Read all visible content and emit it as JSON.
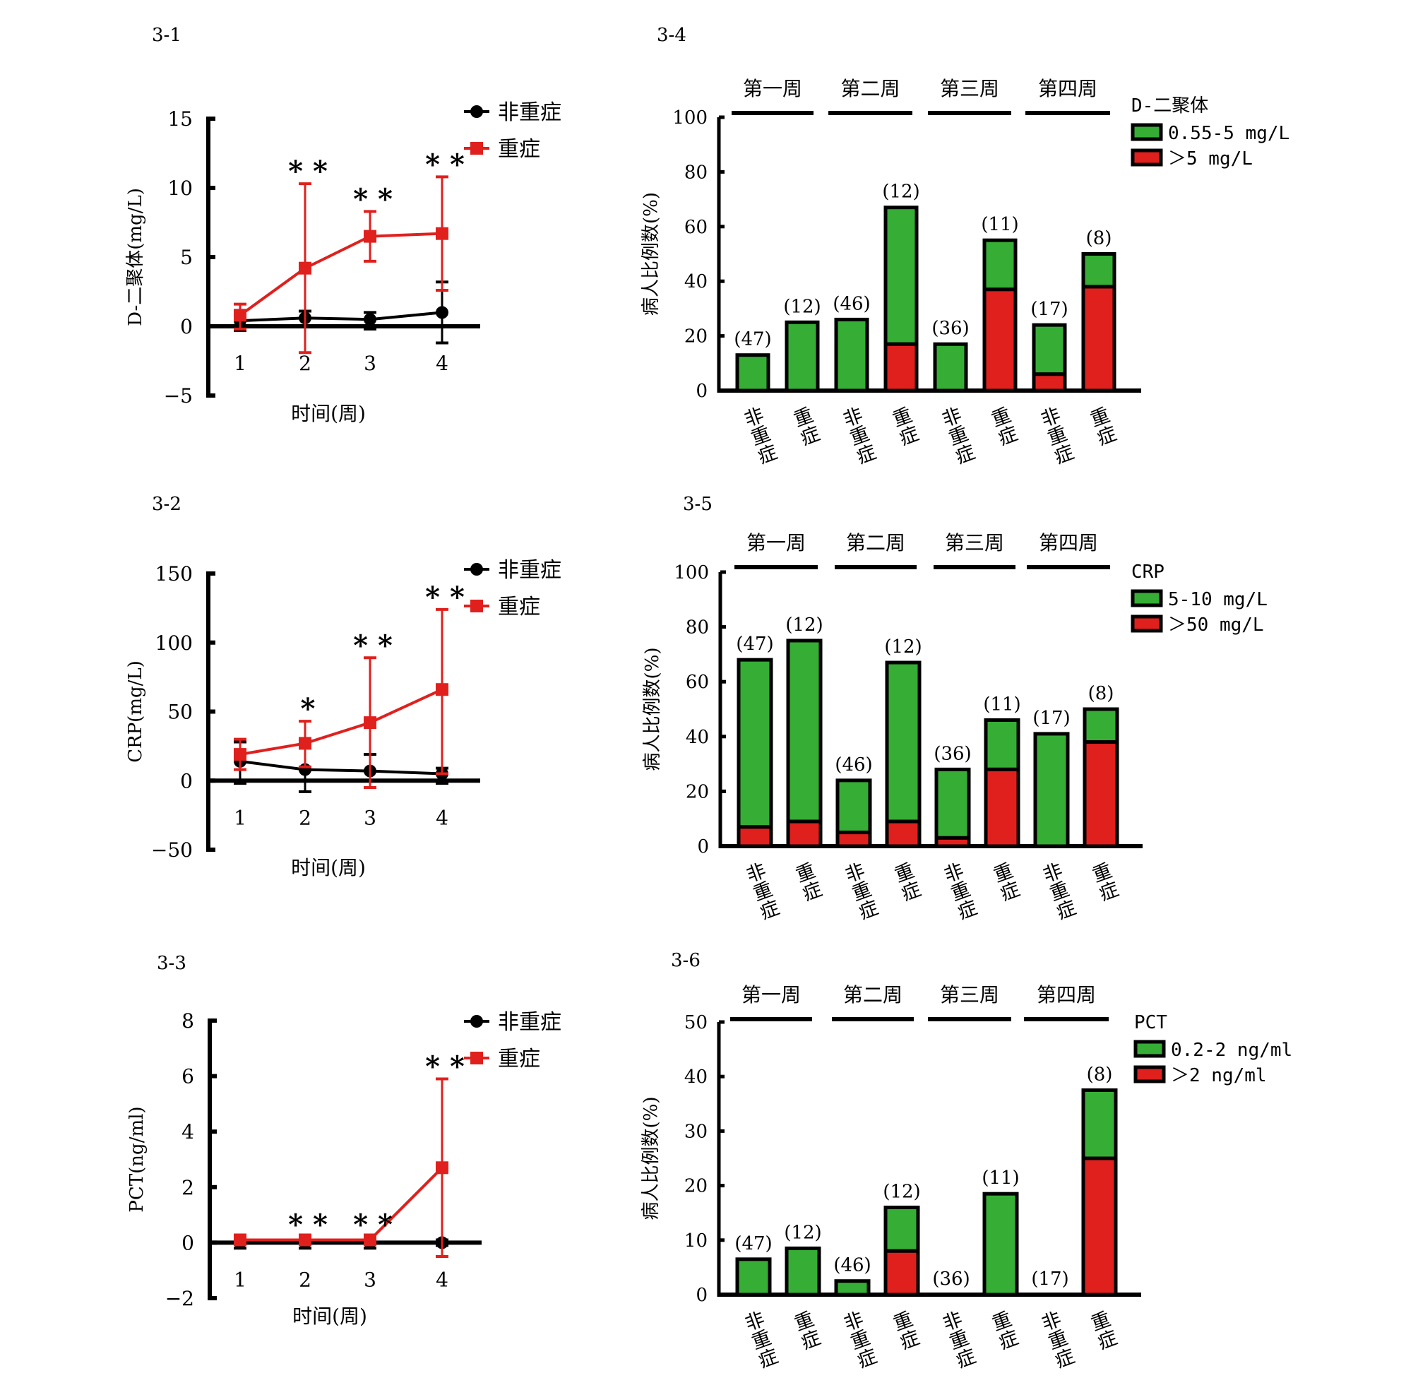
{
  "chart_data": [
    {
      "id": "3-1",
      "type": "line",
      "panel_label": "3-1",
      "ylabel": "D-二聚体(mg/L)",
      "xlabel": "时间(周)",
      "x": [
        1,
        2,
        3,
        4
      ],
      "x_ticks": [
        "1",
        "2",
        "3",
        "4"
      ],
      "ylim": [
        -5,
        15
      ],
      "y_ticks": [
        15,
        10,
        5,
        0,
        -5
      ],
      "y_tick_labels": [
        "15",
        "10",
        "5",
        "0",
        "−5"
      ],
      "legend": "top-right",
      "significance": [
        "",
        "**",
        "**",
        "**"
      ],
      "series": [
        {
          "name": "非重症",
          "color": "#000000",
          "marker": "circle",
          "values": [
            0.4,
            0.6,
            0.5,
            1.0
          ],
          "err_upper": [
            0.6,
            1.1,
            1.0,
            3.2
          ],
          "err_lower": [
            -0.3,
            0.0,
            -0.2,
            -1.2
          ]
        },
        {
          "name": "重症",
          "color": "#e0201d",
          "marker": "square",
          "values": [
            0.8,
            4.2,
            6.5,
            6.7
          ],
          "err_upper": [
            1.6,
            10.3,
            8.3,
            10.8
          ],
          "err_lower": [
            -0.2,
            -1.9,
            4.7,
            2.6
          ]
        }
      ]
    },
    {
      "id": "3-2",
      "type": "line",
      "panel_label": "3-2",
      "ylabel": "CRP(mg/L)",
      "xlabel": "时间(周)",
      "x": [
        1,
        2,
        3,
        4
      ],
      "x_ticks": [
        "1",
        "2",
        "3",
        "4"
      ],
      "ylim": [
        -50,
        150
      ],
      "y_ticks": [
        150,
        100,
        50,
        0,
        -50
      ],
      "y_tick_labels": [
        "150",
        "100",
        "50",
        "0",
        "−50"
      ],
      "legend": "top-right",
      "significance": [
        "",
        "*",
        "**",
        "**"
      ],
      "series": [
        {
          "name": "非重症",
          "color": "#000000",
          "marker": "circle",
          "values": [
            14,
            8,
            7,
            5
          ],
          "err_upper": [
            28,
            24,
            19,
            9
          ],
          "err_lower": [
            -2,
            -8,
            -5,
            -2
          ]
        },
        {
          "name": "重症",
          "color": "#e0201d",
          "marker": "square",
          "values": [
            19,
            27,
            42,
            66
          ],
          "err_upper": [
            30,
            43,
            89,
            124
          ],
          "err_lower": [
            8,
            10,
            -5,
            5
          ]
        }
      ]
    },
    {
      "id": "3-3",
      "type": "line",
      "panel_label": "3-3",
      "ylabel": "PCT(ng/ml)",
      "xlabel": "时间(周)",
      "x": [
        1,
        2,
        3,
        4
      ],
      "x_ticks": [
        "1",
        "2",
        "3",
        "4"
      ],
      "ylim": [
        -2,
        8
      ],
      "y_ticks": [
        8,
        6,
        4,
        2,
        0,
        -2
      ],
      "y_tick_labels": [
        "8",
        "6",
        "4",
        "2",
        "0",
        "−2"
      ],
      "legend": "top-right",
      "significance": [
        "",
        "**",
        "**",
        "**"
      ],
      "series": [
        {
          "name": "非重症",
          "color": "#000000",
          "marker": "circle",
          "values": [
            0,
            0,
            0,
            0
          ],
          "err_upper": [
            0.1,
            0.1,
            0.1,
            0.1
          ],
          "err_lower": [
            -0.2,
            -0.2,
            -0.2,
            -0.1
          ]
        },
        {
          "name": "重症",
          "color": "#e0201d",
          "marker": "square",
          "values": [
            0.1,
            0.1,
            0.1,
            2.7
          ],
          "err_upper": [
            0.2,
            0.2,
            0.2,
            5.9
          ],
          "err_lower": [
            0.0,
            0.0,
            0.0,
            -0.5
          ]
        }
      ]
    },
    {
      "id": "3-4",
      "type": "bar",
      "stacked": true,
      "panel_label": "3-4",
      "ylabel": "病人比例数(%)",
      "ylim": [
        0,
        100
      ],
      "y_ticks": [
        0,
        20,
        40,
        60,
        80,
        100
      ],
      "weeks": [
        "第一周",
        "第二周",
        "第三周",
        "第四周"
      ],
      "categories": [
        "非重症",
        "重症",
        "非重症",
        "重症",
        "非重症",
        "重症",
        "非重症",
        "重症"
      ],
      "n_labels": [
        "(47)",
        "(12)",
        "(46)",
        "(12)",
        "(36)",
        "(11)",
        "(17)",
        "(8)"
      ],
      "legend_title": "D-二聚体",
      "legend": "top-right",
      "series": [
        {
          "name": ">5 mg/L",
          "color": "#e0201d",
          "values": [
            0,
            0,
            0,
            17,
            0,
            37,
            6,
            38
          ]
        },
        {
          "name": "0.55-5 mg/L",
          "color": "#36ad35",
          "values": [
            13,
            25,
            26,
            50,
            17,
            18,
            18,
            12
          ]
        }
      ],
      "totals": [
        13,
        25,
        26,
        67,
        17,
        55,
        24,
        50
      ]
    },
    {
      "id": "3-5",
      "type": "bar",
      "stacked": true,
      "panel_label": "3-5",
      "ylabel": "病人比例数(%)",
      "ylim": [
        0,
        100
      ],
      "y_ticks": [
        0,
        20,
        40,
        60,
        80,
        100
      ],
      "weeks": [
        "第一周",
        "第二周",
        "第三周",
        "第四周"
      ],
      "categories": [
        "非重症",
        "重症",
        "非重症",
        "重症",
        "非重症",
        "重症",
        "非重症",
        "重症"
      ],
      "n_labels": [
        "(47)",
        "(12)",
        "(46)",
        "(12)",
        "(36)",
        "(11)",
        "(17)",
        "(8)"
      ],
      "legend_title": "CRP",
      "legend": "top-right",
      "series": [
        {
          "name": ">50 mg/L",
          "color": "#e0201d",
          "values": [
            7,
            9,
            5,
            9,
            3,
            28,
            0,
            38
          ]
        },
        {
          "name": "5-10 mg/L",
          "color": "#36ad35",
          "values": [
            61,
            66,
            19,
            58,
            25,
            18,
            41,
            12
          ]
        }
      ],
      "totals": [
        68,
        75,
        24,
        67,
        28,
        46,
        41,
        50
      ]
    },
    {
      "id": "3-6",
      "type": "bar",
      "stacked": true,
      "panel_label": "3-6",
      "ylabel": "病人比例数(%)",
      "ylim": [
        0,
        50
      ],
      "y_ticks": [
        0,
        10,
        20,
        30,
        40,
        50
      ],
      "weeks": [
        "第一周",
        "第二周",
        "第三周",
        "第四周"
      ],
      "categories": [
        "非重症",
        "重症",
        "非重症",
        "重症",
        "非重症",
        "重症",
        "非重症",
        "重症"
      ],
      "n_labels": [
        "(47)",
        "(12)",
        "(46)",
        "(12)",
        "(36)",
        "(11)",
        "(17)",
        "(8)"
      ],
      "legend_title": "PCT",
      "legend": "top-right",
      "series": [
        {
          "name": ">2 ng/ml",
          "color": "#e0201d",
          "values": [
            0,
            0,
            0,
            8,
            0,
            0,
            0,
            25
          ]
        },
        {
          "name": "0.2-2 ng/ml",
          "color": "#36ad35",
          "values": [
            6.5,
            8.5,
            2.5,
            8,
            0,
            18.5,
            0,
            12.5
          ]
        }
      ],
      "totals": [
        6.5,
        8.5,
        2.5,
        16,
        0,
        18.5,
        0,
        37.5
      ]
    }
  ]
}
